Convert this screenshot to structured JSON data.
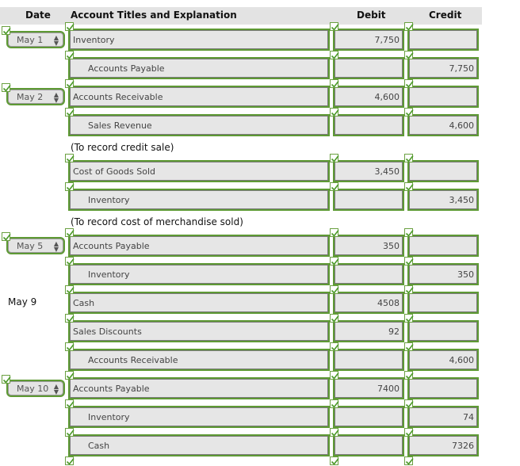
{
  "headers": {
    "date": "Date",
    "account": "Account Titles and Explanation",
    "debit": "Debit",
    "credit": "Credit"
  },
  "rows": [
    {
      "date": "May 1",
      "date_type": "select",
      "account": "Inventory",
      "indent": false,
      "debit": "7,750",
      "credit": ""
    },
    {
      "date": "",
      "date_type": "",
      "account": "Accounts Payable",
      "indent": true,
      "debit": "",
      "credit": "7,750"
    },
    {
      "date": "May 2",
      "date_type": "select",
      "account": "Accounts Receivable",
      "indent": false,
      "debit": "4,600",
      "credit": ""
    },
    {
      "date": "",
      "date_type": "",
      "account": "Sales Revenue",
      "indent": true,
      "debit": "",
      "credit": "4,600"
    },
    {
      "date": "",
      "date_type": "",
      "account": "Cost of Goods Sold",
      "indent": false,
      "debit": "3,450",
      "credit": ""
    },
    {
      "date": "",
      "date_type": "",
      "account": "Inventory",
      "indent": true,
      "debit": "",
      "credit": "3,450"
    },
    {
      "date": "May 5",
      "date_type": "select",
      "account": "Accounts Payable",
      "indent": false,
      "debit": "350",
      "credit": ""
    },
    {
      "date": "",
      "date_type": "",
      "account": "Inventory",
      "indent": true,
      "debit": "",
      "credit": "350"
    },
    {
      "date": "May 9",
      "date_type": "text",
      "account": "Cash",
      "indent": false,
      "debit": "4508",
      "credit": ""
    },
    {
      "date": "",
      "date_type": "",
      "account": "Sales Discounts",
      "indent": false,
      "debit": "92",
      "credit": ""
    },
    {
      "date": "",
      "date_type": "",
      "account": "Accounts Receivable",
      "indent": true,
      "debit": "",
      "credit": "4,600"
    },
    {
      "date": "May 10",
      "date_type": "select",
      "account": "Accounts Payable",
      "indent": false,
      "debit": "7400",
      "credit": ""
    },
    {
      "date": "",
      "date_type": "",
      "account": "Inventory",
      "indent": true,
      "debit": "",
      "credit": "74"
    },
    {
      "date": "",
      "date_type": "",
      "account": "Cash",
      "indent": true,
      "debit": "",
      "credit": "7326"
    }
  ],
  "notes": [
    {
      "after_row": 3,
      "text": "(To record credit sale)"
    },
    {
      "after_row": 5,
      "text": "(To record cost of merchandise sold)"
    }
  ],
  "colors": {
    "header_bg": "#e3e3e3",
    "field_bg": "#e6e6e6",
    "correct_border": "#5e9a34",
    "check": "#4c9a2a"
  },
  "icons": {
    "date_arrow": "up-down-arrow-icon",
    "check": "check-icon"
  }
}
